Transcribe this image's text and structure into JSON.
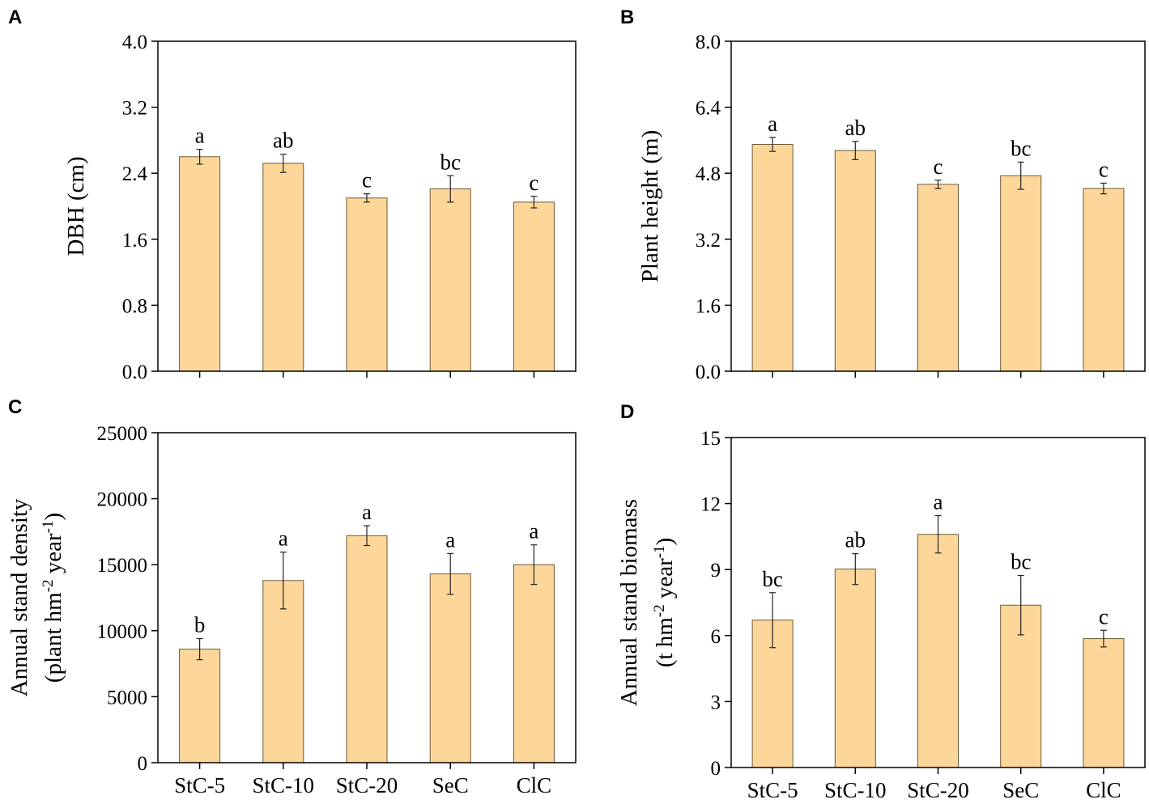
{
  "colors": {
    "bar_fill": "#fdd79a",
    "bar_stroke": "#6b5a3a",
    "axis": "#000000"
  },
  "chart_data": [
    {
      "panel": "A",
      "type": "bar",
      "categories": [
        "StC-5",
        "StC-10",
        "StC-20",
        "SeC",
        "ClC"
      ],
      "values": [
        2.6,
        2.52,
        2.1,
        2.21,
        2.05
      ],
      "errors": [
        0.09,
        0.11,
        0.05,
        0.16,
        0.07
      ],
      "significance": [
        "a",
        "ab",
        "c",
        "bc",
        "c"
      ],
      "ylabel": "DBH (cm)",
      "ylim": [
        0,
        4.0
      ],
      "yticks": [
        "0.0",
        "0.8",
        "1.6",
        "2.4",
        "3.2",
        "4.0"
      ],
      "show_category_labels": false
    },
    {
      "panel": "B",
      "type": "bar",
      "categories": [
        "StC-5",
        "StC-10",
        "StC-20",
        "SeC",
        "ClC"
      ],
      "values": [
        5.5,
        5.35,
        4.53,
        4.74,
        4.43
      ],
      "errors": [
        0.17,
        0.22,
        0.1,
        0.33,
        0.13
      ],
      "significance": [
        "a",
        "ab",
        "c",
        "bc",
        "c"
      ],
      "ylabel": "Plant height (m)",
      "ylim": [
        0,
        8.0
      ],
      "yticks": [
        "0.0",
        "1.6",
        "3.2",
        "4.8",
        "6.4",
        "8.0"
      ],
      "show_category_labels": false
    },
    {
      "panel": "C",
      "type": "bar",
      "categories": [
        "StC-5",
        "StC-10",
        "StC-20",
        "SeC",
        "ClC"
      ],
      "values": [
        8600,
        13800,
        17200,
        14300,
        15000
      ],
      "errors": [
        800,
        2150,
        750,
        1550,
        1500
      ],
      "significance": [
        "b",
        "a",
        "a",
        "a",
        "a"
      ],
      "ylabel_lines": [
        "Annual stand density",
        "(plant hm",
        "-2",
        " year",
        "-1",
        ")"
      ],
      "ylim": [
        0,
        25000
      ],
      "yticks": [
        "0",
        "5000",
        "10000",
        "15000",
        "20000",
        "25000"
      ],
      "show_category_labels": true
    },
    {
      "panel": "D",
      "type": "bar",
      "categories": [
        "StC-5",
        "StC-10",
        "StC-20",
        "SeC",
        "ClC"
      ],
      "values": [
        6.7,
        9.02,
        10.6,
        7.38,
        5.86
      ],
      "errors": [
        1.25,
        0.7,
        0.85,
        1.35,
        0.38
      ],
      "significance": [
        "bc",
        "ab",
        "a",
        "bc",
        "c"
      ],
      "ylabel_lines": [
        "Annual stand biomass",
        "(t hm",
        "-2",
        " year",
        "-1",
        ")"
      ],
      "ylim": [
        0,
        15
      ],
      "yticks": [
        "0",
        "3",
        "6",
        "9",
        "12",
        "15"
      ],
      "show_category_labels": true
    }
  ]
}
